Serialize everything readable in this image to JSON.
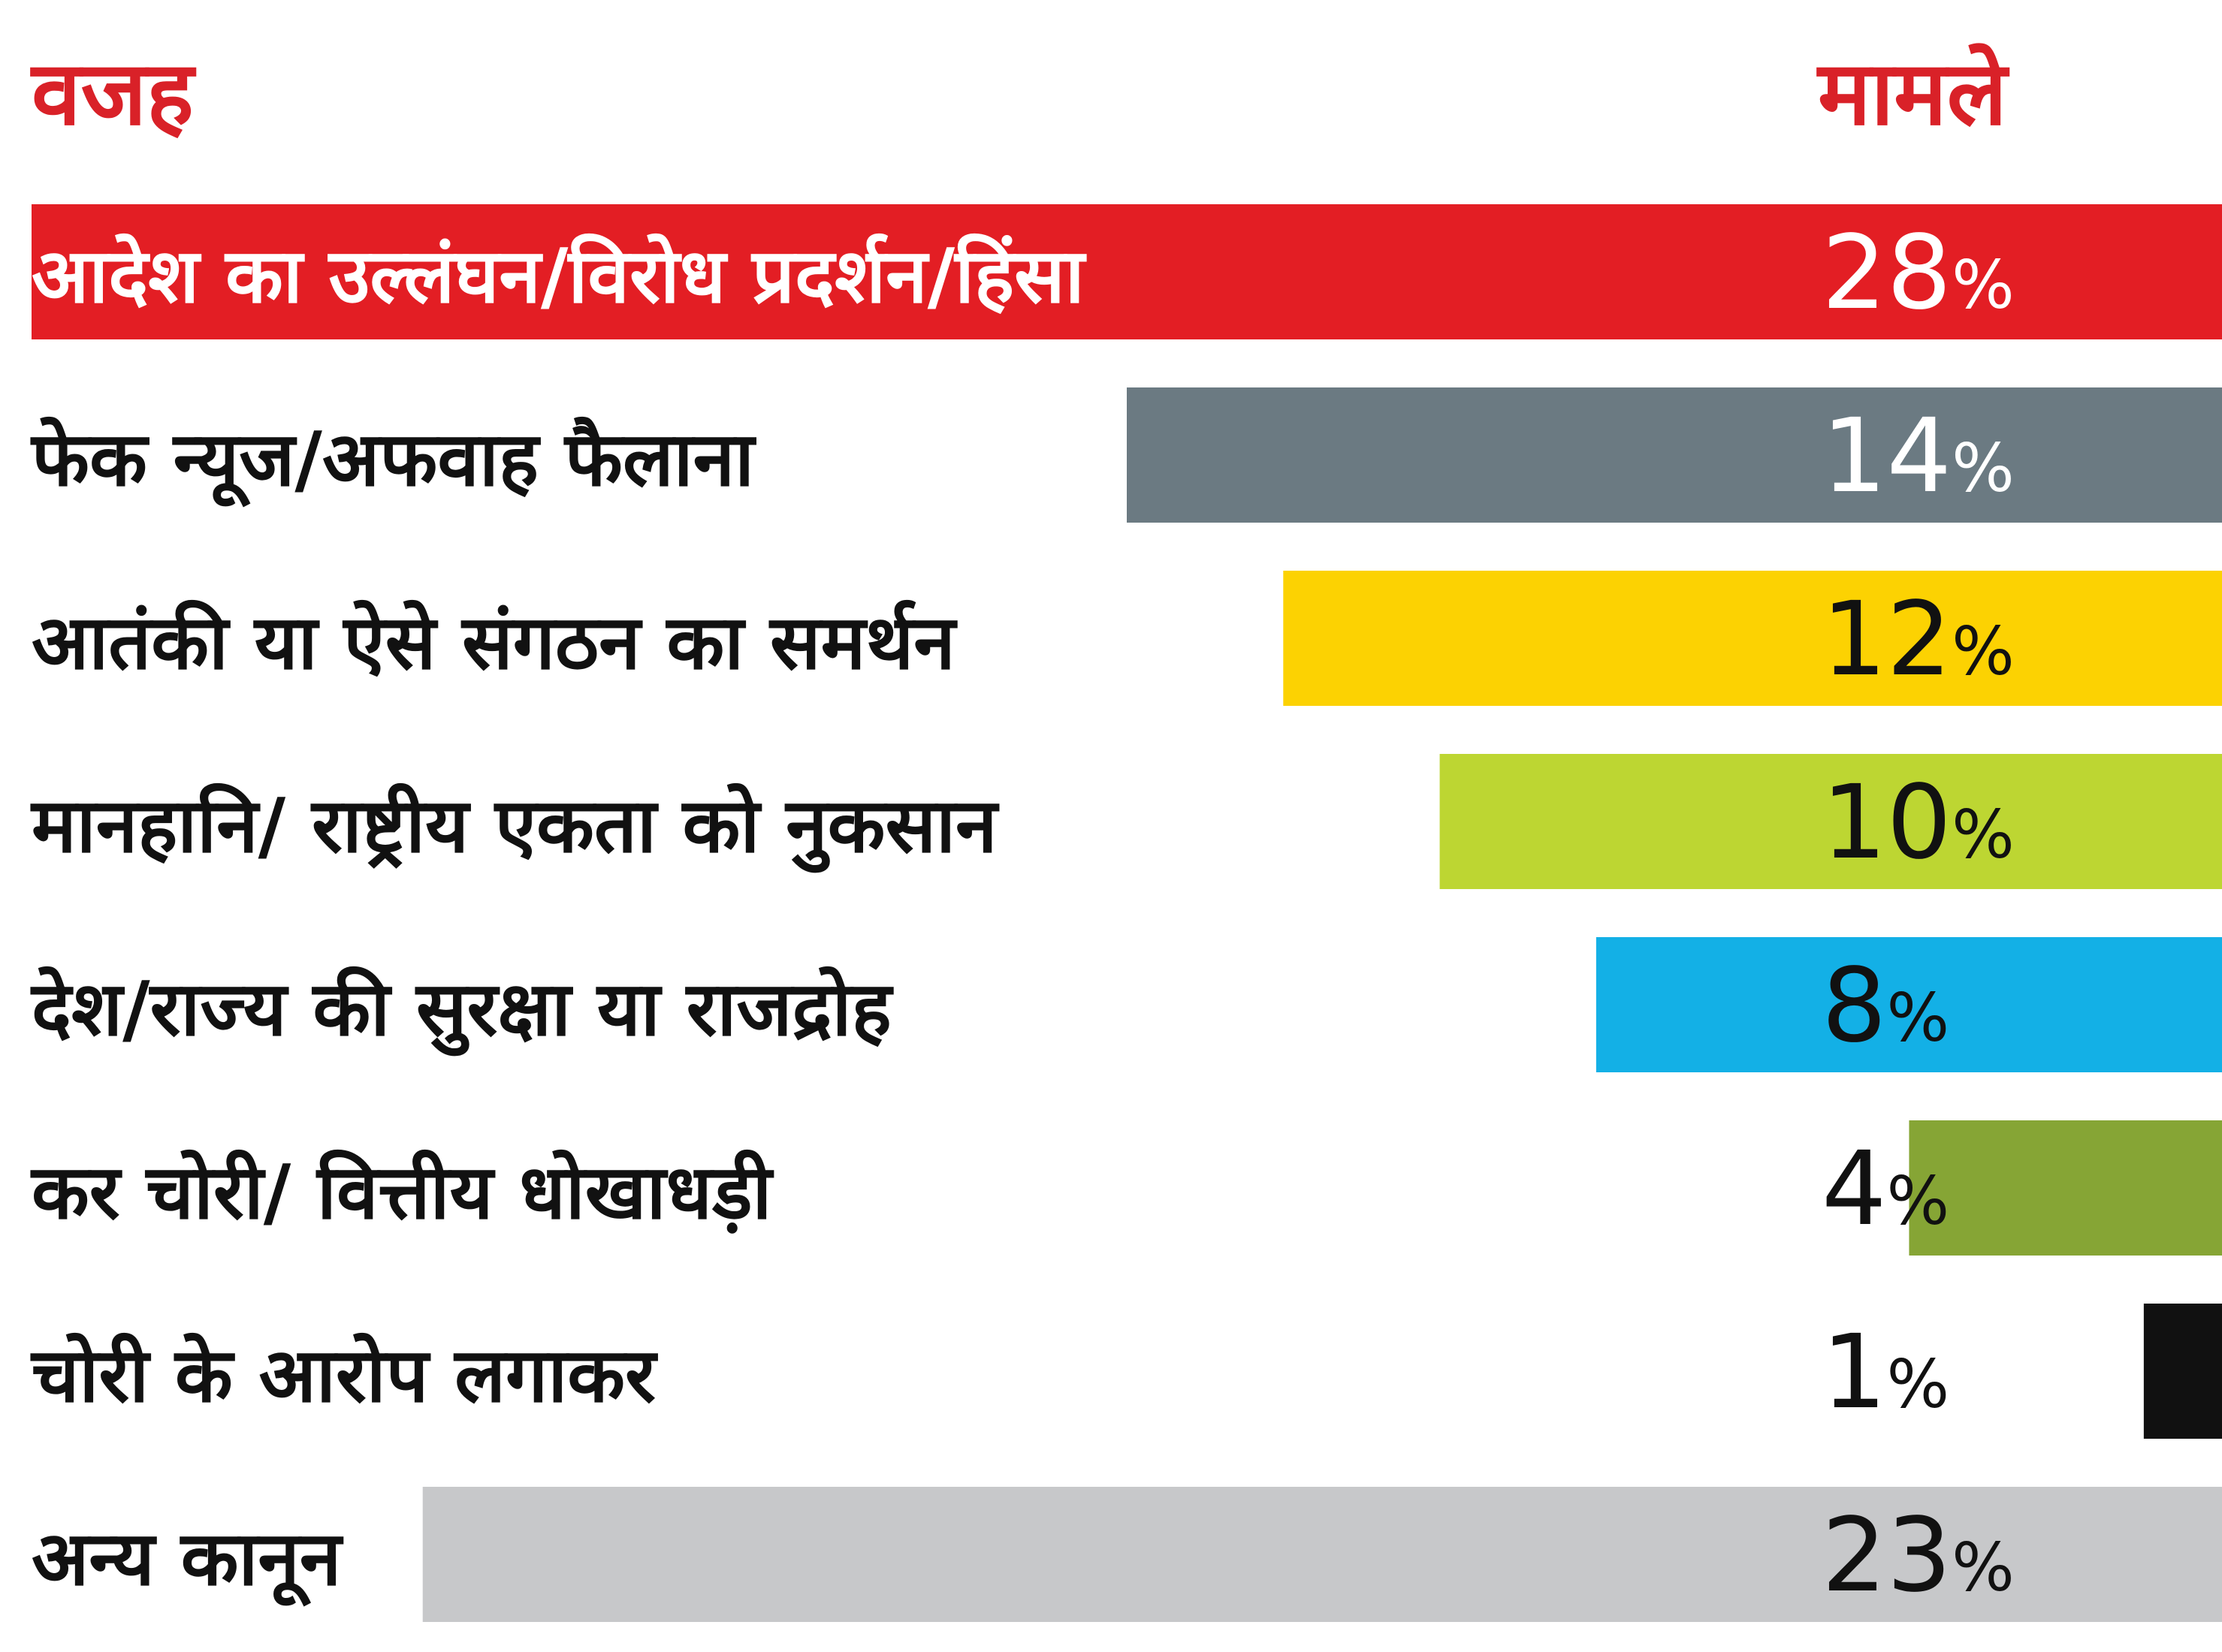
{
  "chart_data": {
    "type": "bar",
    "orientation": "horizontal",
    "headers": {
      "category": "वजह",
      "value": "मामले"
    },
    "categories": [
      "आदेश का उल्लंघन/विरोध प्रदर्शन/हिंसा",
      "फेक न्यूज/अफवाह फैलाना",
      "आतंकी या ऐसे संगठन का समर्थन",
      "मानहानि/ राष्ट्रीय एकता को नुकसान",
      "देश/राज्य की सुरक्षा या राजद्रोह",
      "कर चोरी/ वित्तीय धोखाधड़ी",
      "चोरी के आरोप लगाकर",
      "अन्य कानून"
    ],
    "values": [
      28,
      14,
      12,
      10,
      8,
      4,
      1,
      23
    ],
    "value_labels": [
      "28",
      "14",
      "12",
      "10",
      "8",
      "4",
      "1",
      "23"
    ],
    "unit": "%",
    "colors": [
      "#e31e24",
      "#6b7a82",
      "#fcd202",
      "#bdd632",
      "#13b0e6",
      "#86a535",
      "#111111",
      "#c7c8ca"
    ],
    "header_color": "#d92128",
    "xlim": [
      0,
      28
    ]
  }
}
